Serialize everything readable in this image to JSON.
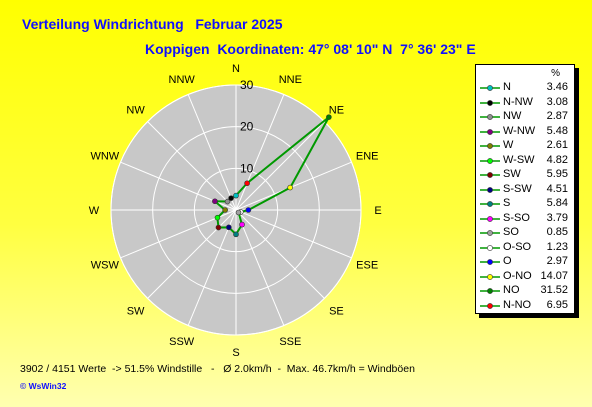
{
  "header": {
    "title": "Verteilung Windrichtung   Februar 2025",
    "subtitle": "Koppigen  Koordinaten: 47° 08' 10\" N  7° 36' 23\" E"
  },
  "footer": {
    "stats": "3902 / 4151 Werte  -> 51.5% Windstille   -   Ø 2.0km/h  -  Max. 46.7km/h = Windböen",
    "logo": "© WsWin32"
  },
  "colors": {
    "background_top": "#ffff00",
    "plot_fill": "#c8c8c8",
    "text_blue": "#1010ff",
    "series_line": "#009900"
  },
  "chart_data": {
    "type": "radar",
    "title": "Verteilung Windrichtung   Februar 2025",
    "radial_ticks": [
      10,
      20,
      30
    ],
    "r_max": 30,
    "compass_labels": [
      "N",
      "NNE",
      "NE",
      "ENE",
      "E",
      "ESE",
      "SE",
      "SSE",
      "S",
      "SSW",
      "SW",
      "WSW",
      "W",
      "WNW",
      "NW",
      "NNW"
    ],
    "legend_header": "%",
    "series": [
      {
        "name": "N",
        "value": 3.46,
        "angle": 0,
        "color": "#00c0c0"
      },
      {
        "name": "N-NW",
        "value": 3.08,
        "angle": 337.5,
        "color": "#000000"
      },
      {
        "name": "NW",
        "value": 2.87,
        "angle": 315,
        "color": "#909090"
      },
      {
        "name": "W-NW",
        "value": 5.48,
        "angle": 292.5,
        "color": "#800080"
      },
      {
        "name": "W",
        "value": 2.61,
        "angle": 270,
        "color": "#808000"
      },
      {
        "name": "W-SW",
        "value": 4.82,
        "angle": 247.5,
        "color": "#00ff00"
      },
      {
        "name": "SW",
        "value": 5.95,
        "angle": 225,
        "color": "#800000"
      },
      {
        "name": "S-SW",
        "value": 4.51,
        "angle": 202.5,
        "color": "#000080"
      },
      {
        "name": "S",
        "value": 5.84,
        "angle": 180,
        "color": "#008080"
      },
      {
        "name": "S-SO",
        "value": 3.79,
        "angle": 157.5,
        "color": "#ff00ff"
      },
      {
        "name": "SO",
        "value": 0.85,
        "angle": 135,
        "color": "#a0a0a0"
      },
      {
        "name": "O-SO",
        "value": 1.23,
        "angle": 112.5,
        "color": "#ffffff"
      },
      {
        "name": "O",
        "value": 2.97,
        "angle": 90,
        "color": "#0000ff"
      },
      {
        "name": "O-NO",
        "value": 14.07,
        "angle": 67.5,
        "color": "#ffff00"
      },
      {
        "name": "NO",
        "value": 31.52,
        "angle": 45,
        "color": "#008000"
      },
      {
        "name": "N-NO",
        "value": 6.95,
        "angle": 22.5,
        "color": "#ff0000"
      }
    ]
  }
}
